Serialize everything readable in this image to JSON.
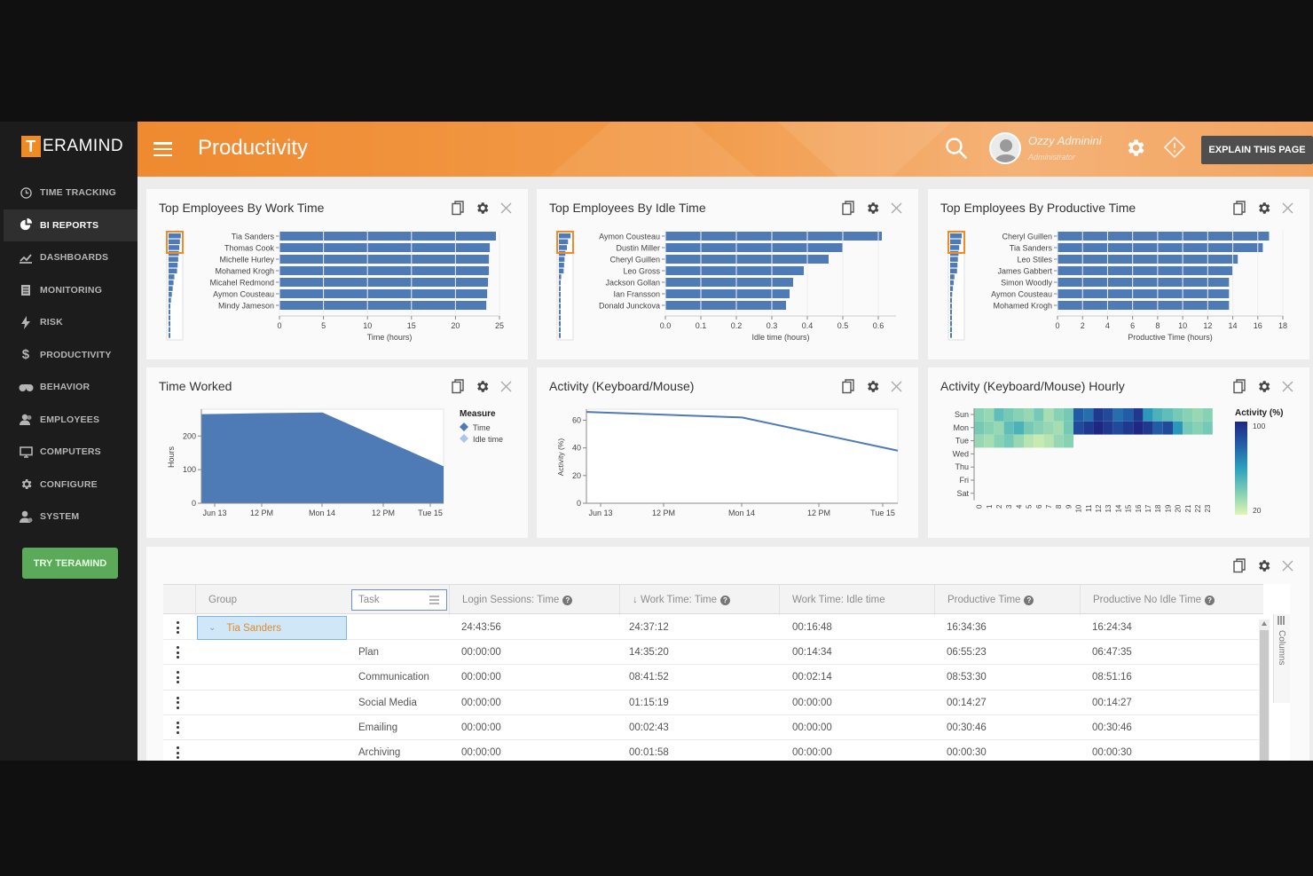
{
  "sidebar": {
    "logo_letter": "T",
    "logo_rest": "ERAMIND",
    "items": [
      {
        "label": "TIME TRACKING",
        "icon": "clock-icon"
      },
      {
        "label": "BI REPORTS",
        "icon": "pie-chart-icon",
        "active": true
      },
      {
        "label": "DASHBOARDS",
        "icon": "dashboard-icon"
      },
      {
        "label": "MONITORING",
        "icon": "monitor-icon"
      },
      {
        "label": "RISK",
        "icon": "lightning-icon"
      },
      {
        "label": "PRODUCTIVITY",
        "icon": "dollar-icon"
      },
      {
        "label": "BEHAVIOR",
        "icon": "binoculars-icon"
      },
      {
        "label": "EMPLOYEES",
        "icon": "users-icon"
      },
      {
        "label": "COMPUTERS",
        "icon": "computer-icon"
      },
      {
        "label": "CONFIGURE",
        "icon": "gear-icon"
      },
      {
        "label": "SYSTEM",
        "icon": "system-user-icon"
      }
    ],
    "try_button": "TRY TERAMIND"
  },
  "header": {
    "title": "Productivity",
    "user_name": "Ozzy Adminini",
    "user_role": "Administrator",
    "explain_button": "EXPLAIN THIS PAGE"
  },
  "panels": {
    "work_time": {
      "title": "Top Employees By Work Time"
    },
    "idle_time": {
      "title": "Top Employees By Idle Time"
    },
    "productive_time": {
      "title": "Top Employees By Productive Time"
    },
    "time_worked": {
      "title": "Time Worked"
    },
    "activity": {
      "title": "Activity (Keyboard/Mouse)"
    },
    "activity_hourly": {
      "title": "Activity (Keyboard/Mouse) Hourly"
    }
  },
  "chart_data": [
    {
      "type": "bar",
      "orientation": "horizontal",
      "title": "Top Employees By Work Time",
      "categories": [
        "Tia Sanders",
        "Thomas Cook",
        "Michelle Hurley",
        "Mohamed Krogh",
        "Micahel Redmond",
        "Aymon Cousteau",
        "Mindy Jameson"
      ],
      "values": [
        24.6,
        23.9,
        23.8,
        23.8,
        23.7,
        23.6,
        23.5
      ],
      "xlabel": "Time (hours)",
      "xticks": [
        "0",
        "5",
        "10",
        "15",
        "20",
        "25"
      ],
      "xlim": [
        0,
        25
      ],
      "color": "#4e7ab5"
    },
    {
      "type": "bar",
      "orientation": "horizontal",
      "title": "Top Employees By Idle Time",
      "categories": [
        "Aymon Cousteau",
        "Dustin Miller",
        "Cheryl Guillen",
        "Leo Gross",
        "Jackson Gollan",
        "Ian Fransson",
        "Donald Junckova"
      ],
      "values": [
        0.61,
        0.5,
        0.46,
        0.39,
        0.36,
        0.35,
        0.34
      ],
      "xlabel": "Idle time (hours)",
      "xticks": [
        "0.0",
        "0.1",
        "0.2",
        "0.3",
        "0.4",
        "0.5",
        "0.6"
      ],
      "xlim": [
        0,
        0.65
      ],
      "color": "#4e7ab5"
    },
    {
      "type": "bar",
      "orientation": "horizontal",
      "title": "Top Employees By Productive Time",
      "categories": [
        "Cheryl Guillen",
        "Tia Sanders",
        "Leo Stiles",
        "James Gabbert",
        "Simon Woodly",
        "Aymon Cousteau",
        "Mohamed Krogh"
      ],
      "values": [
        16.9,
        16.4,
        14.4,
        14.0,
        13.7,
        13.7,
        13.7
      ],
      "xlabel": "Productive Time (hours)",
      "xticks": [
        "0",
        "2",
        "4",
        "6",
        "8",
        "10",
        "12",
        "14",
        "16",
        "18"
      ],
      "xlim": [
        0,
        18
      ],
      "color": "#4e7ab5"
    },
    {
      "type": "area",
      "title": "Time Worked",
      "x": [
        "Jun 13",
        "12 PM",
        "Mon 14",
        "12 PM",
        "Tue 15"
      ],
      "series": [
        {
          "name": "Time",
          "values": [
            265,
            268,
            270,
            190,
            110
          ]
        },
        {
          "name": "Idle time",
          "values": [
            0,
            0,
            0,
            0,
            0
          ]
        }
      ],
      "ylabel": "Hours",
      "yticks": [
        "0",
        "100",
        "200"
      ],
      "ylim": [
        0,
        280
      ],
      "legend_title": "Measure",
      "legend": "right",
      "color": "#4e7ab5"
    },
    {
      "type": "line",
      "title": "Activity (Keyboard/Mouse)",
      "x": [
        "Jun 13",
        "12 PM",
        "Mon 14",
        "12 PM",
        "Tue 15"
      ],
      "values": [
        66,
        64,
        62,
        50,
        38
      ],
      "ylabel": "Activity (%)",
      "yticks": [
        "0",
        "20",
        "40",
        "60"
      ],
      "ylim": [
        0,
        68
      ],
      "color": "#4e7ab5"
    },
    {
      "type": "heatmap",
      "title": "Activity (Keyboard/Mouse) Hourly",
      "rows": [
        "Sun",
        "Mon",
        "Tue",
        "Wed",
        "Thu",
        "Fri",
        "Sat"
      ],
      "cols": [
        "0",
        "1",
        "2",
        "3",
        "4",
        "5",
        "6",
        "7",
        "8",
        "9",
        "10",
        "11",
        "12",
        "13",
        "14",
        "15",
        "16",
        "17",
        "18",
        "19",
        "20",
        "21",
        "22",
        "23"
      ],
      "values": [
        [
          45,
          40,
          55,
          50,
          45,
          40,
          50,
          35,
          45,
          50,
          85,
          80,
          95,
          90,
          80,
          85,
          95,
          70,
          60,
          55,
          50,
          45,
          40,
          45
        ],
        [
          50,
          45,
          40,
          55,
          60,
          50,
          45,
          40,
          35,
          50,
          90,
          95,
          100,
          95,
          90,
          95,
          100,
          95,
          85,
          90,
          70,
          50,
          45,
          50
        ],
        [
          40,
          35,
          45,
          50,
          40,
          30,
          25,
          30,
          40,
          45,
          null,
          null,
          null,
          null,
          null,
          null,
          null,
          null,
          null,
          null,
          null,
          null,
          null,
          null
        ],
        [
          null,
          null,
          null,
          null,
          null,
          null,
          null,
          null,
          null,
          null,
          null,
          null,
          null,
          null,
          null,
          null,
          null,
          null,
          null,
          null,
          null,
          null,
          null,
          null
        ],
        [
          null,
          null,
          null,
          null,
          null,
          null,
          null,
          null,
          null,
          null,
          null,
          null,
          null,
          null,
          null,
          null,
          null,
          null,
          null,
          null,
          null,
          null,
          null,
          null
        ],
        [
          null,
          null,
          null,
          null,
          null,
          null,
          null,
          null,
          null,
          null,
          null,
          null,
          null,
          null,
          null,
          null,
          null,
          null,
          null,
          null,
          null,
          null,
          null,
          null
        ],
        [
          null,
          null,
          null,
          null,
          null,
          null,
          null,
          null,
          null,
          null,
          null,
          null,
          null,
          null,
          null,
          null,
          null,
          null,
          null,
          null,
          null,
          null,
          null,
          null
        ]
      ],
      "legend_title": "Activity (%)",
      "legend_ticks": [
        "100",
        "20"
      ],
      "range": [
        20,
        100
      ]
    }
  ],
  "grid": {
    "headers": {
      "group": "Group",
      "task": "Task",
      "login": "Login Sessions: Time",
      "work": "↓ Work Time: Time",
      "idle": "Work Time: Idle time",
      "productive": "Productive Time",
      "productive_no_idle": "Productive No Idle Time"
    },
    "side_tab": "Columns",
    "rows": [
      {
        "group": "Tia Sanders",
        "task": "",
        "login": "24:43:56",
        "work": "24:37:12",
        "idle": "00:16:48",
        "productive": "16:34:36",
        "productive_no_idle": "16:24:34"
      },
      {
        "group": "",
        "task": "Plan",
        "login": "00:00:00",
        "work": "14:35:20",
        "idle": "00:14:34",
        "productive": "06:55:23",
        "productive_no_idle": "06:47:35"
      },
      {
        "group": "",
        "task": "Communication",
        "login": "00:00:00",
        "work": "08:41:52",
        "idle": "00:02:14",
        "productive": "08:53:30",
        "productive_no_idle": "08:51:16"
      },
      {
        "group": "",
        "task": "Social Media",
        "login": "00:00:00",
        "work": "01:15:19",
        "idle": "00:00:00",
        "productive": "00:14:27",
        "productive_no_idle": "00:14:27"
      },
      {
        "group": "",
        "task": "Emailing",
        "login": "00:00:00",
        "work": "00:02:43",
        "idle": "00:00:00",
        "productive": "00:30:46",
        "productive_no_idle": "00:30:46"
      },
      {
        "group": "",
        "task": "Archiving",
        "login": "00:00:00",
        "work": "00:01:58",
        "idle": "00:00:00",
        "productive": "00:00:30",
        "productive_no_idle": "00:00:30"
      }
    ]
  }
}
